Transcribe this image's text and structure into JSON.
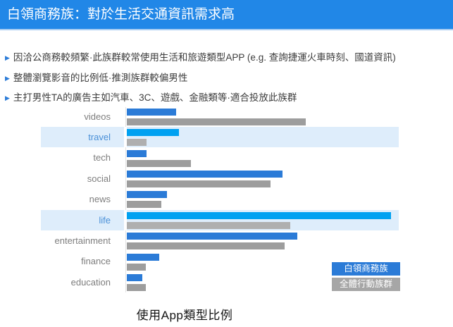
{
  "header": {
    "title": "白領商務族：對於生活交通資訊需求高",
    "bg_color": "#2187E7",
    "underline_color": "#A9CDF1"
  },
  "bullets": {
    "marker_icon": "triangle-bullet-icon",
    "marker_glyph": "▶",
    "items": [
      "因洽公商務較頻繁·此族群較常使用生活和旅遊類型APP (e.g. 查詢捷運火車時刻、國道資訊)",
      "整體瀏覽影音的比例低·推測族群較偏男性",
      "主打男性TA的廣告主如汽車、3C、遊戲、金融類等·適合投放此族群"
    ]
  },
  "chart_data": {
    "type": "bar",
    "orientation": "horizontal",
    "title": "使用App類型比例",
    "categories": [
      "videos",
      "travel",
      "tech",
      "social",
      "news",
      "life",
      "entertainment",
      "finance",
      "education"
    ],
    "highlighted_categories": [
      "travel",
      "life"
    ],
    "series": [
      {
        "name": "白領商務族",
        "color": "#2B7BD7",
        "highlight_color": "#00A1F1",
        "values": [
          17.9,
          19.0,
          7.2,
          56.7,
          14.6,
          96.2,
          62.1,
          11.8,
          5.6
        ]
      },
      {
        "name": "全體行動族群",
        "color": "#9D9D9D",
        "highlight_color": "#AFAFAF",
        "values": [
          65.1,
          7.2,
          23.3,
          52.3,
          12.6,
          59.5,
          57.4,
          6.9,
          6.9
        ]
      }
    ],
    "value_axis": {
      "visible": false,
      "note": "axis is unlabeled in the image; values are estimated bar lengths as % of plot width"
    },
    "grid": false,
    "legend_position": "bottom-right",
    "highlight_band_color": "#DEEDFB"
  }
}
